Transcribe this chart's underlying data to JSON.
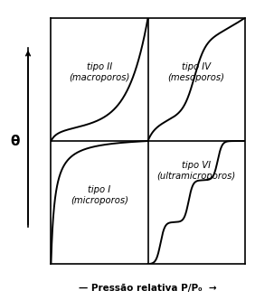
{
  "title": "",
  "xlabel": "Pressão relativa P/P₀",
  "ylabel": "θ",
  "background_color": "#ffffff",
  "line_color": "#000000",
  "label_tipo_II": "tipo II\n(macroporos)",
  "label_tipo_IV": "tipo IV\n(mesoporos)",
  "label_tipo_I": "tipo I\n(microporos)",
  "label_tipo_VI": "tipo VI\n(ultramicroporos)",
  "fig_width": 2.82,
  "fig_height": 3.32,
  "dpi": 100
}
